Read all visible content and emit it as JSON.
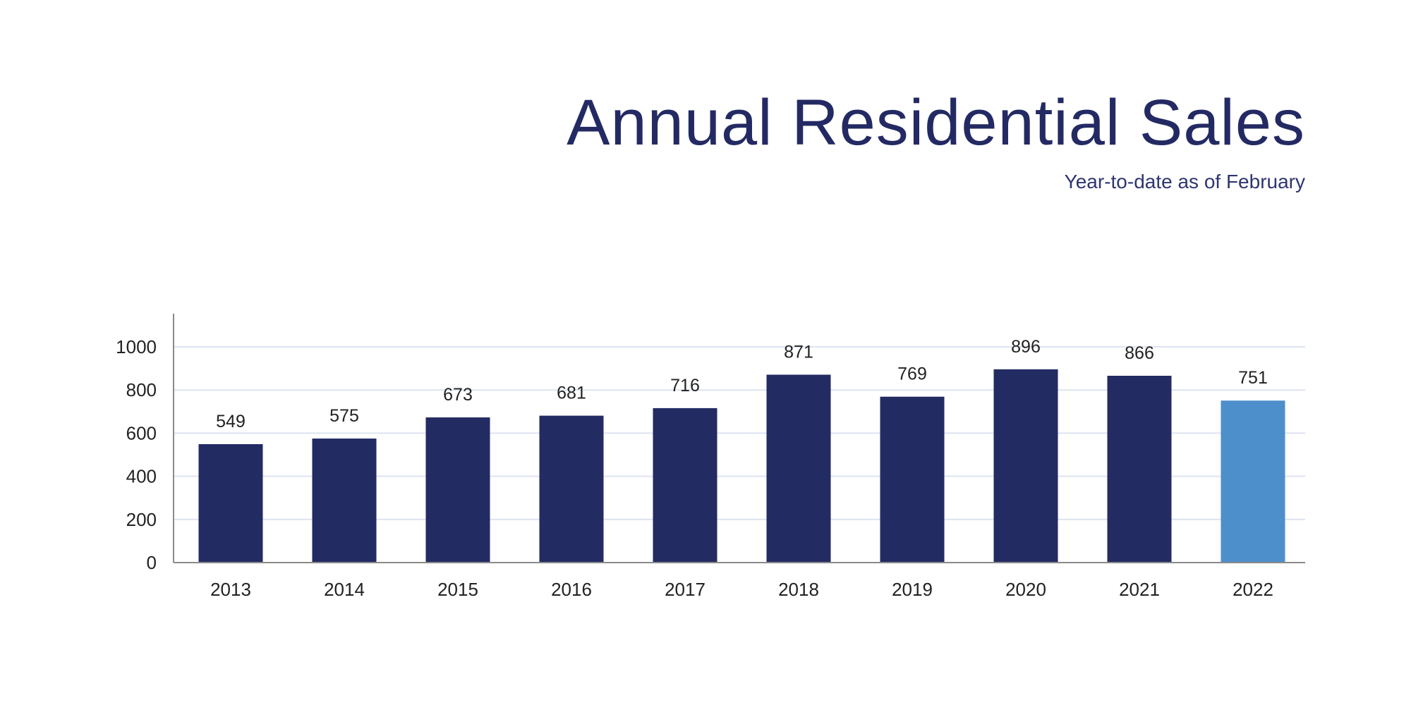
{
  "chart_data": {
    "type": "bar",
    "title": "Annual Residential Sales",
    "subtitle": "Year-to-date as of February",
    "xlabel": "",
    "ylabel": "",
    "categories": [
      "2013",
      "2014",
      "2015",
      "2016",
      "2017",
      "2018",
      "2019",
      "2020",
      "2021",
      "2022"
    ],
    "values": [
      549,
      575,
      673,
      681,
      716,
      871,
      769,
      896,
      866,
      751
    ],
    "ylim": [
      0,
      1000
    ],
    "yticks": [
      0,
      200,
      400,
      600,
      800,
      1000
    ],
    "grid": true,
    "data_labels": true,
    "colors": {
      "bar": "#232b63",
      "highlight_bar": "#4d8fcb",
      "highlight_category": "2022",
      "title": "#232a63",
      "grid": "#dde3f0",
      "axis": "#8a8a8a"
    }
  }
}
